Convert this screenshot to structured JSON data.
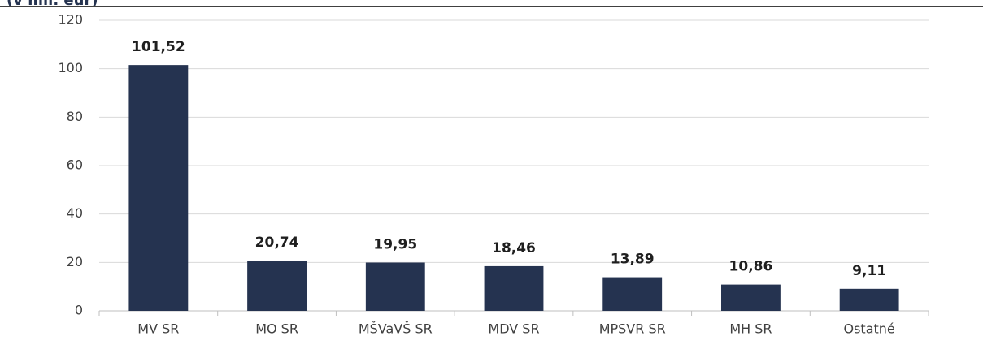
{
  "chart_data": {
    "type": "bar",
    "title": "(v mil. eur)",
    "categories": [
      "MV SR",
      "MO SR",
      "MŠVaVŠ SR",
      "MDV SR",
      "MPSVR SR",
      "MH SR",
      "Ostatné"
    ],
    "values": [
      101.52,
      20.74,
      19.95,
      18.46,
      13.89,
      10.86,
      9.11
    ],
    "value_labels": [
      "101,52",
      "20,74",
      "19,95",
      "18,46",
      "13,89",
      "10,86",
      "9,11"
    ],
    "color": "#253350",
    "ylim": [
      0,
      120
    ],
    "yticks": [
      0,
      20,
      40,
      60,
      80,
      100,
      120
    ],
    "grid": true
  }
}
